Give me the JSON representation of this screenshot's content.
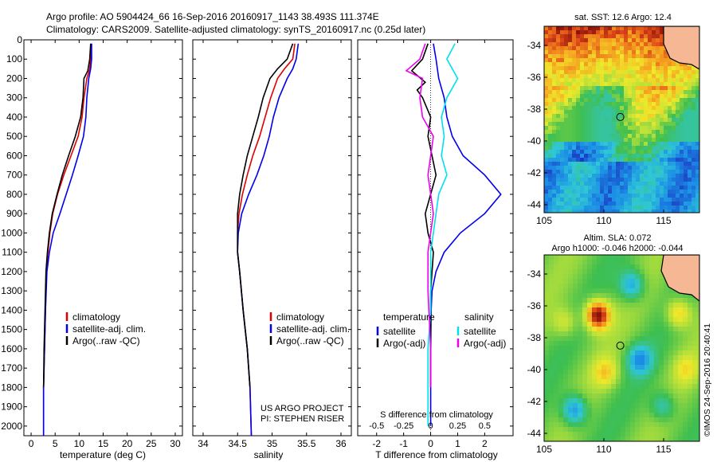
{
  "header": {
    "line1": "Argo profile: AO 5904424_66 16-Sep-2016 20160917_1143 38.493S 111.374E",
    "line2": "Climatology: CARS2009. Satellite-adjusted climatology: synTS_20160917.nc (0.25d later)"
  },
  "colors": {
    "climatology": "#e00000",
    "satellite": "#0000ee",
    "argo": "#000000",
    "sal_satellite": "#00e0ee",
    "sal_argo": "#ee00ee"
  },
  "chart_data": [
    {
      "type": "line",
      "xlabel": "temperature (deg C)",
      "ylabel": "",
      "xlim": [
        -1.5,
        31.5
      ],
      "ylim": [
        2050,
        0
      ],
      "xticks": [
        0,
        5,
        10,
        15,
        20,
        25,
        30
      ],
      "yticks": [
        0,
        100,
        200,
        300,
        400,
        500,
        600,
        700,
        800,
        900,
        1000,
        1100,
        1200,
        1300,
        1400,
        1500,
        1600,
        1700,
        1800,
        1900,
        2000
      ],
      "legend": [
        "climatology",
        "satellite-adj. clim.",
        "Argo(..raw -QC)"
      ],
      "legend_position": "bottom-right",
      "series": [
        {
          "name": "climatology",
          "color_key": "climatology",
          "x": [
            12.5,
            12.4,
            12.2,
            11.6,
            11.0,
            10.6,
            9.8,
            8.3,
            6.8,
            5.5,
            4.5,
            3.9,
            3.5,
            3.2,
            3.0,
            2.8,
            2.6,
            2.6
          ],
          "y": [
            20,
            100,
            150,
            200,
            300,
            400,
            500,
            600,
            700,
            800,
            900,
            1000,
            1100,
            1200,
            1400,
            1600,
            1800,
            2050
          ]
        },
        {
          "name": "satellite-adj. clim.",
          "color_key": "satellite",
          "x": [
            12.6,
            12.6,
            12.4,
            12.0,
            11.6,
            11.4,
            10.9,
            9.8,
            8.6,
            7.3,
            6.0,
            4.6,
            3.8,
            3.3,
            3.0,
            2.8,
            2.6,
            2.6
          ],
          "y": [
            20,
            100,
            150,
            200,
            300,
            400,
            500,
            600,
            700,
            800,
            900,
            1000,
            1100,
            1200,
            1400,
            1600,
            1800,
            2050
          ]
        },
        {
          "name": "Argo(..raw -QC)",
          "color_key": "argo",
          "x": [
            12.4,
            12.2,
            11.8,
            11.0,
            10.8,
            10.3,
            9.2,
            7.8,
            6.5,
            5.4,
            4.4,
            3.8,
            3.4,
            3.1,
            2.9,
            2.7,
            2.6
          ],
          "y": [
            20,
            100,
            160,
            200,
            300,
            400,
            500,
            600,
            700,
            800,
            900,
            1000,
            1100,
            1200,
            1400,
            1600,
            1800
          ]
        }
      ]
    },
    {
      "type": "line",
      "xlabel": "salinity",
      "ylabel": "",
      "xlim": [
        33.85,
        36.15
      ],
      "ylim": [
        2050,
        0
      ],
      "xticks": [
        34,
        34.5,
        35,
        35.5,
        36
      ],
      "legend": [
        "climatology",
        "satellite-adj. clim.",
        "Argo(..raw -QC)"
      ],
      "legend_position": "bottom-right",
      "annotation": [
        "US ARGO PROJECT",
        "PI: STEPHEN RISER"
      ],
      "series": [
        {
          "name": "climatology",
          "color_key": "climatology",
          "x": [
            35.33,
            35.3,
            35.18,
            35.08,
            34.98,
            34.9,
            34.82,
            34.72,
            34.64,
            34.57,
            34.52,
            34.5,
            34.5,
            34.53,
            34.58,
            34.64,
            34.68,
            34.7
          ],
          "y": [
            20,
            100,
            150,
            200,
            300,
            400,
            500,
            600,
            700,
            800,
            900,
            1000,
            1100,
            1200,
            1400,
            1600,
            1800,
            2050
          ]
        },
        {
          "name": "satellite-adj. clim.",
          "color_key": "satellite",
          "x": [
            35.38,
            35.35,
            35.3,
            35.22,
            35.1,
            35.02,
            34.96,
            34.88,
            34.78,
            34.66,
            34.56,
            34.51,
            34.5,
            34.53,
            34.58,
            34.64,
            34.68,
            34.7
          ],
          "y": [
            20,
            100,
            150,
            200,
            300,
            400,
            500,
            600,
            700,
            800,
            900,
            1000,
            1100,
            1200,
            1400,
            1600,
            1800,
            2050
          ]
        },
        {
          "name": "Argo(..raw -QC)",
          "color_key": "argo",
          "x": [
            35.3,
            35.22,
            35.08,
            34.97,
            34.87,
            34.8,
            34.72,
            34.64,
            34.58,
            34.53,
            34.5,
            34.5,
            34.53,
            34.58,
            34.64,
            34.68
          ],
          "y": [
            20,
            100,
            150,
            200,
            300,
            400,
            500,
            600,
            700,
            800,
            900,
            1100,
            1200,
            1400,
            1600,
            1800
          ]
        }
      ]
    },
    {
      "type": "line",
      "xlabel": "T difference from climatology",
      "x2label": "S difference from climatology",
      "xlim": [
        -2.7,
        3.05
      ],
      "ylim": [
        2050,
        0
      ],
      "xticks": [
        -2,
        -1,
        0,
        1,
        2
      ],
      "x2ticks": [
        -0.5,
        -0.25,
        0,
        0.25,
        0.5
      ],
      "x2_scale_factor": 4,
      "legend_temperature": {
        "title": "temperature",
        "items": [
          "satellite",
          "Argo(-adj)"
        ]
      },
      "legend_salinity": {
        "title": "salinity",
        "items": [
          "satellite",
          "Argo(-adj)"
        ]
      },
      "legend_position": "bottom-center",
      "series": [
        {
          "name": "temperature satellite",
          "color_key": "satellite",
          "x": [
            0.1,
            0.2,
            0.3,
            0.5,
            0.6,
            0.8,
            1.2,
            2.0,
            2.6,
            2.0,
            1.1,
            0.5,
            0.2,
            0.05,
            0.02,
            0.0,
            0.0
          ],
          "y": [
            20,
            100,
            200,
            300,
            400,
            500,
            600,
            700,
            800,
            900,
            1000,
            1100,
            1200,
            1300,
            1400,
            1600,
            2000
          ]
        },
        {
          "name": "temperature Argo(-adj)",
          "color_key": "argo",
          "x": [
            -0.1,
            -0.3,
            -0.7,
            -0.2,
            -0.5,
            -0.3,
            0.0,
            -0.1,
            0.2,
            -0.2,
            -0.1,
            0.1,
            0.0,
            0.0,
            0.0
          ],
          "y": [
            20,
            100,
            160,
            220,
            260,
            300,
            400,
            500,
            700,
            900,
            1000,
            1100,
            1300,
            1600,
            1800
          ]
        },
        {
          "name": "salinity satellite",
          "color_key": "sal_satellite",
          "x": [
            0.9,
            0.6,
            1.0,
            0.6,
            0.4,
            0.5,
            0.4,
            0.6,
            0.3,
            0.2,
            0.1,
            0.0,
            0.0,
            -0.1,
            -0.1
          ],
          "y": [
            20,
            100,
            200,
            300,
            400,
            500,
            600,
            700,
            800,
            900,
            1000,
            1100,
            1400,
            1600,
            2000
          ]
        },
        {
          "name": "salinity Argo(-adj)",
          "color_key": "sal_argo",
          "x": [
            -0.2,
            -0.4,
            -0.9,
            -0.3,
            -0.4,
            -0.3,
            0.1,
            -0.1,
            0.1,
            0.0,
            -0.1,
            -0.1,
            0.0,
            0.0
          ],
          "y": [
            20,
            100,
            160,
            200,
            300,
            400,
            500,
            700,
            900,
            1000,
            1100,
            1300,
            1600,
            1800
          ]
        }
      ]
    },
    {
      "type": "heatmap",
      "title": "sat. SST: 12.6 Argo: 12.4",
      "xlim": [
        105,
        118
      ],
      "ylim": [
        -44.5,
        -32.8
      ],
      "xticks": [
        105,
        110,
        115
      ],
      "yticks": [
        -34,
        -36,
        -38,
        -40,
        -42,
        -44
      ],
      "marker": {
        "lon": 111.374,
        "lat": -38.493
      }
    },
    {
      "type": "heatmap",
      "title": "Altim. SLA: 0.072",
      "subtitle": "Argo h1000: -0.046 h2000: -0.044",
      "xlim": [
        105,
        118
      ],
      "ylim": [
        -44.5,
        -32.8
      ],
      "xticks": [
        105,
        110,
        115
      ],
      "yticks": [
        -34,
        -36,
        -38,
        -40,
        -42,
        -44
      ],
      "marker": {
        "lon": 111.374,
        "lat": -38.493
      }
    }
  ],
  "footer": {
    "stamp": "©IMOS 24-Sep-2016 20:40:41"
  }
}
